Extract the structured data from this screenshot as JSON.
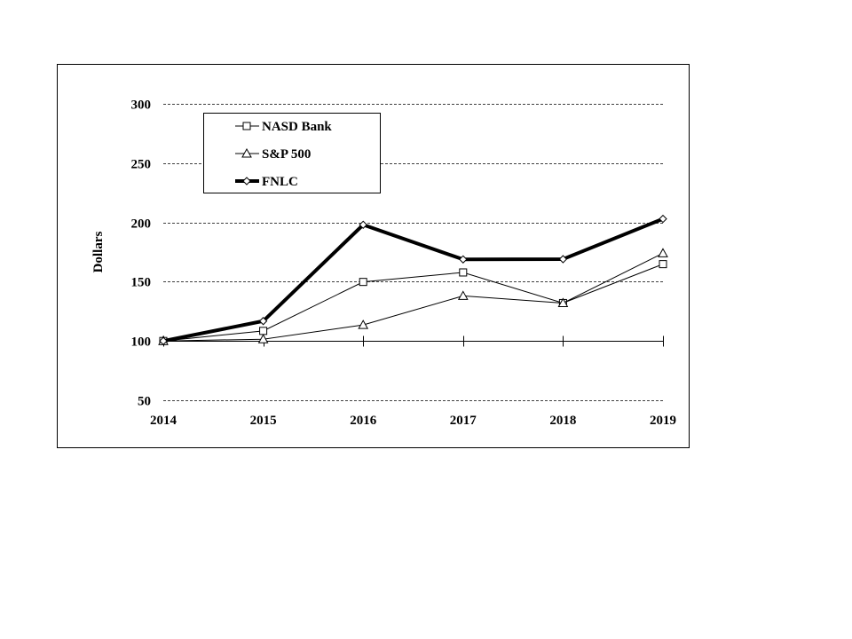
{
  "chart_data": {
    "type": "line",
    "title": "",
    "xlabel": "",
    "ylabel": "Dollars",
    "x": [
      "2014",
      "2015",
      "2016",
      "2017",
      "2018",
      "2019"
    ],
    "yticks": [
      "50",
      "100",
      "150",
      "200",
      "250",
      "300"
    ],
    "ylim": [
      50,
      300
    ],
    "grid": "horizontal dashed",
    "legend_position": "top-left",
    "series": [
      {
        "name": "NASD Bank",
        "marker": "square",
        "line": "thin",
        "values": [
          100,
          108.5,
          149.8,
          157.8,
          132,
          164.8
        ]
      },
      {
        "name": "S&P 500",
        "marker": "triangle",
        "line": "thin",
        "values": [
          100,
          101.5,
          113.5,
          138,
          132,
          174
        ]
      },
      {
        "name": "FNLC",
        "marker": "diamond",
        "line": "thick",
        "values": [
          100,
          116.8,
          198,
          168.8,
          169,
          203
        ]
      }
    ],
    "colors": {
      "line": "#000000",
      "background": "#ffffff"
    }
  }
}
